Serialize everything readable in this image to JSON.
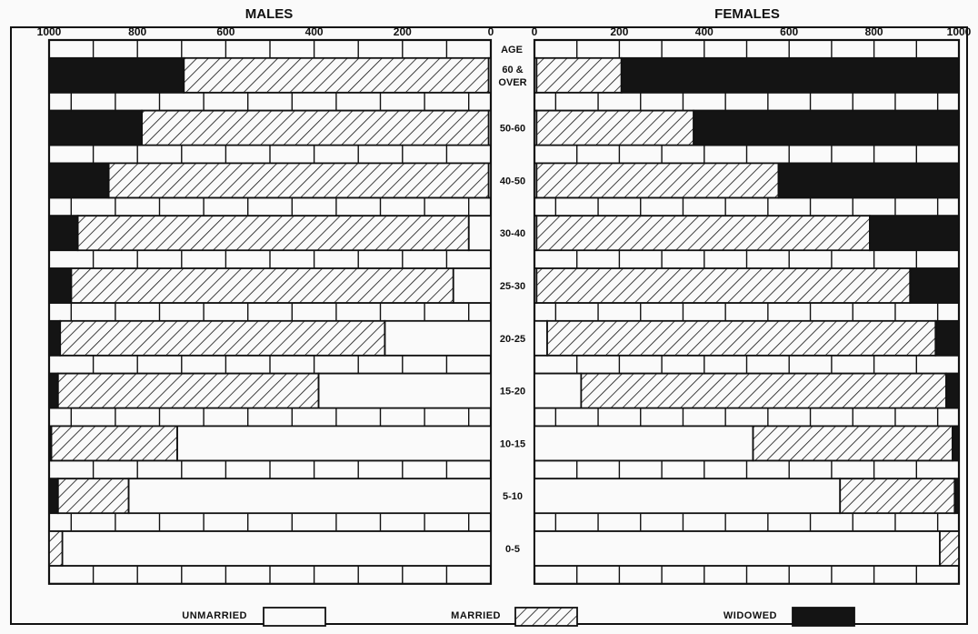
{
  "chart_data": {
    "type": "bar",
    "orientation": "horizontal-stacked-population-pyramid",
    "titles": {
      "left": "MALES",
      "right": "FEMALES"
    },
    "age_header": [
      "AGE"
    ],
    "categories": [
      [
        "60 &",
        "OVER"
      ],
      [
        "50-60"
      ],
      [
        "40-50"
      ],
      [
        "30-40"
      ],
      [
        "25-30"
      ],
      [
        "20-25"
      ],
      [
        "15-20"
      ],
      [
        "10-15"
      ],
      [
        "5-10"
      ],
      [
        "0-5"
      ]
    ],
    "x_ticks": {
      "males": [
        "1000",
        "800",
        "600",
        "400",
        "200",
        "0"
      ],
      "females": [
        "0",
        "200",
        "400",
        "600",
        "800",
        "1000"
      ]
    },
    "xlim": [
      0,
      1000
    ],
    "series_order": [
      "unmarried",
      "married",
      "widowed"
    ],
    "males": {
      "unmarried": [
        5,
        5,
        5,
        50,
        85,
        240,
        390,
        710,
        820,
        970
      ],
      "married": [
        690,
        785,
        860,
        885,
        865,
        735,
        590,
        285,
        160,
        30
      ],
      "widowed": [
        305,
        210,
        135,
        65,
        50,
        25,
        20,
        5,
        20,
        0
      ]
    },
    "females": {
      "unmarried": [
        5,
        5,
        5,
        5,
        5,
        30,
        110,
        515,
        720,
        955
      ],
      "married": [
        200,
        370,
        570,
        785,
        880,
        915,
        860,
        470,
        270,
        45
      ],
      "widowed": [
        795,
        625,
        425,
        210,
        115,
        55,
        30,
        15,
        10,
        0
      ]
    },
    "legend": {
      "position": "bottom",
      "items": [
        {
          "key": "unmarried",
          "label": "UNMARRIED"
        },
        {
          "key": "married",
          "label": "MARRIED"
        },
        {
          "key": "widowed",
          "label": "WIDOWED"
        }
      ]
    },
    "colors": {
      "ink": "#111111",
      "paper": "#fafafa",
      "widowed_fill": "#141414"
    },
    "grid": true
  }
}
